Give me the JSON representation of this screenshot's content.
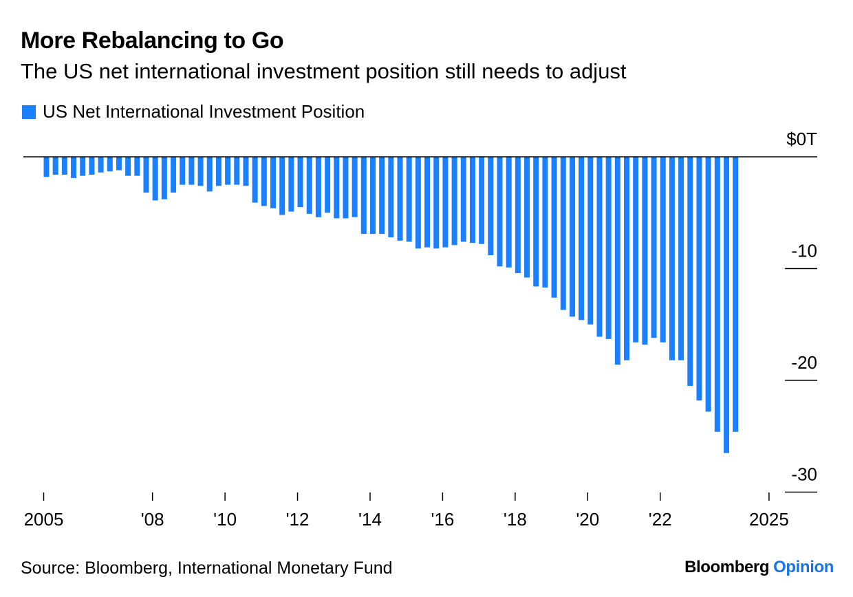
{
  "title": "More Rebalancing to Go",
  "subtitle": "The US net international investment position still needs to adjust",
  "legend": {
    "label": "US Net International Investment Position"
  },
  "source": "Source: Bloomberg, International Monetary Fund",
  "brand": {
    "name": "Bloomberg",
    "section": "Opinion"
  },
  "colors": {
    "bar": "#1a80ff",
    "axis": "#000000",
    "brand_accent": "#1a73e8"
  },
  "chart_data": {
    "type": "bar",
    "series": [
      {
        "name": "US Net International Investment Position",
        "values": [
          -1.8,
          -1.6,
          -1.6,
          -1.9,
          -1.7,
          -1.6,
          -1.4,
          -1.3,
          -1.2,
          -1.7,
          -1.7,
          -3.2,
          -3.9,
          -3.8,
          -3.2,
          -2.5,
          -2.5,
          -2.6,
          -3.1,
          -2.6,
          -2.5,
          -2.5,
          -2.6,
          -4.1,
          -4.4,
          -4.6,
          -5.2,
          -4.9,
          -4.5,
          -5.1,
          -5.4,
          -5.0,
          -5.5,
          -5.5,
          -5.4,
          -6.9,
          -6.9,
          -6.9,
          -7.2,
          -7.5,
          -7.6,
          -8.2,
          -8.1,
          -8.2,
          -8.1,
          -7.9,
          -7.6,
          -7.7,
          -7.8,
          -8.8,
          -9.8,
          -9.9,
          -10.4,
          -10.8,
          -11.6,
          -11.7,
          -12.6,
          -13.7,
          -14.3,
          -14.6,
          -15.0,
          -16.1,
          -16.3,
          -18.6,
          -18.2,
          -16.6,
          -16.8,
          -16.2,
          -16.6,
          -18.2,
          -18.2,
          -20.5,
          -21.8,
          -22.8,
          -24.6,
          -26.5,
          -24.6
        ]
      }
    ],
    "x_start": 2005,
    "x_interval": "quarter",
    "x_ticks": [
      {
        "value": 2005,
        "label": "2005"
      },
      {
        "value": 2008,
        "label": "'08"
      },
      {
        "value": 2010,
        "label": "'10"
      },
      {
        "value": 2012,
        "label": "'12"
      },
      {
        "value": 2014,
        "label": "'14"
      },
      {
        "value": 2016,
        "label": "'16"
      },
      {
        "value": 2018,
        "label": "'18"
      },
      {
        "value": 2020,
        "label": "'20"
      },
      {
        "value": 2022,
        "label": "'22"
      },
      {
        "value": 2025,
        "label": "2025"
      }
    ],
    "y_ticks": [
      {
        "value": 0,
        "label": "$0T"
      },
      {
        "value": -10,
        "label": "-10"
      },
      {
        "value": -20,
        "label": "-20"
      },
      {
        "value": -30,
        "label": "-30"
      }
    ],
    "ylim": [
      -30,
      0
    ],
    "y_axis_position": "right",
    "grid": false
  }
}
